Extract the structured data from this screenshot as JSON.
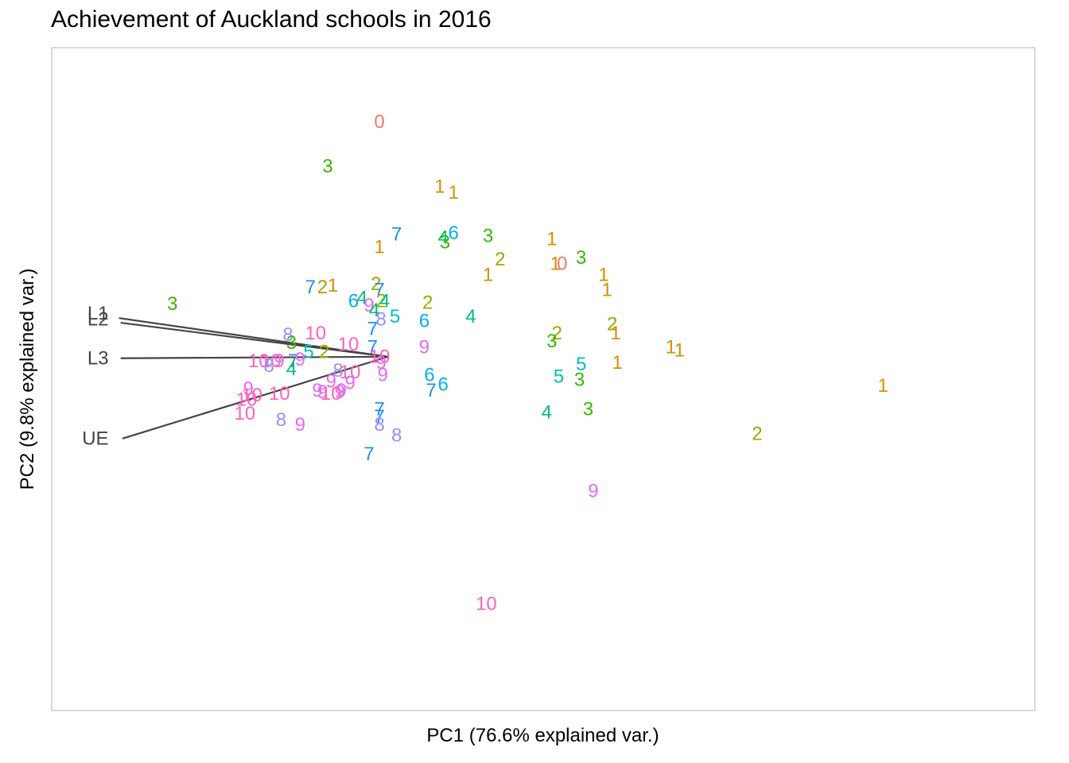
{
  "chart_data": {
    "type": "scatter",
    "title": "Achievement of Auckland schools in 2016",
    "xlabel": "PC1 (76.6% explained var.)",
    "ylabel": "PC2 (9.8% explained var.)",
    "xlim": [
      -1.95,
      3.75
    ],
    "ylim": [
      -2.29,
      2.0
    ],
    "grid": false,
    "legend": "none",
    "decile_colors": {
      "0": "#F8766D",
      "1": "#D89000",
      "2": "#A3A500",
      "3": "#39B600",
      "4": "#00BF7D",
      "5": "#00BFC4",
      "6": "#00B0F6",
      "7": "#1F8EF1",
      "8": "#9590FF",
      "9": "#E76BF3",
      "10": "#FF62BC"
    },
    "points": [
      {
        "x": -0.05,
        "y": 1.52,
        "label": "0"
      },
      {
        "x": -0.35,
        "y": 1.23,
        "label": "3"
      },
      {
        "x": 0.3,
        "y": 1.1,
        "label": "1"
      },
      {
        "x": 0.38,
        "y": 1.06,
        "label": "1"
      },
      {
        "x": 0.05,
        "y": 0.79,
        "label": "7"
      },
      {
        "x": 0.38,
        "y": 0.8,
        "label": "6"
      },
      {
        "x": 0.32,
        "y": 0.77,
        "label": "4"
      },
      {
        "x": 0.33,
        "y": 0.74,
        "label": "3"
      },
      {
        "x": 0.58,
        "y": 0.78,
        "label": "3"
      },
      {
        "x": 0.95,
        "y": 0.76,
        "label": "1"
      },
      {
        "x": -0.05,
        "y": 0.71,
        "label": "1"
      },
      {
        "x": 0.65,
        "y": 0.63,
        "label": "2"
      },
      {
        "x": 0.97,
        "y": 0.6,
        "label": "1"
      },
      {
        "x": 1.01,
        "y": 0.6,
        "label": "0"
      },
      {
        "x": 1.12,
        "y": 0.64,
        "label": "3"
      },
      {
        "x": 0.58,
        "y": 0.53,
        "label": "1"
      },
      {
        "x": 1.25,
        "y": 0.53,
        "label": "1"
      },
      {
        "x": 1.27,
        "y": 0.43,
        "label": "1"
      },
      {
        "x": -0.45,
        "y": 0.45,
        "label": "7"
      },
      {
        "x": -0.38,
        "y": 0.45,
        "label": "2"
      },
      {
        "x": -0.32,
        "y": 0.46,
        "label": "1"
      },
      {
        "x": -0.07,
        "y": 0.47,
        "label": "2"
      },
      {
        "x": -0.05,
        "y": 0.43,
        "label": "7"
      },
      {
        "x": -0.04,
        "y": 0.36,
        "label": "2"
      },
      {
        "x": -0.02,
        "y": 0.36,
        "label": "4"
      },
      {
        "x": -0.2,
        "y": 0.36,
        "label": "6"
      },
      {
        "x": -0.15,
        "y": 0.38,
        "label": "4"
      },
      {
        "x": -0.11,
        "y": 0.33,
        "label": "9"
      },
      {
        "x": -1.25,
        "y": 0.34,
        "label": "3"
      },
      {
        "x": 0.23,
        "y": 0.35,
        "label": "2"
      },
      {
        "x": -0.08,
        "y": 0.3,
        "label": "4"
      },
      {
        "x": -0.04,
        "y": 0.24,
        "label": "8"
      },
      {
        "x": 0.04,
        "y": 0.26,
        "label": "5"
      },
      {
        "x": 0.21,
        "y": 0.23,
        "label": "6"
      },
      {
        "x": 0.48,
        "y": 0.26,
        "label": "4"
      },
      {
        "x": -0.09,
        "y": 0.18,
        "label": "7"
      },
      {
        "x": -0.58,
        "y": 0.14,
        "label": "8"
      },
      {
        "x": -0.42,
        "y": 0.15,
        "label": "10"
      },
      {
        "x": -0.56,
        "y": 0.09,
        "label": "3"
      },
      {
        "x": 1.3,
        "y": 0.21,
        "label": "2"
      },
      {
        "x": 1.32,
        "y": 0.15,
        "label": "1"
      },
      {
        "x": 0.98,
        "y": 0.15,
        "label": "2"
      },
      {
        "x": 0.95,
        "y": 0.1,
        "label": "3"
      },
      {
        "x": -0.09,
        "y": 0.06,
        "label": "7"
      },
      {
        "x": -0.23,
        "y": 0.08,
        "label": "10"
      },
      {
        "x": 0.21,
        "y": 0.06,
        "label": "9"
      },
      {
        "x": -0.46,
        "y": 0.03,
        "label": "5"
      },
      {
        "x": -0.37,
        "y": 0.03,
        "label": "2"
      },
      {
        "x": -0.05,
        "y": 0.0,
        "label": "10"
      },
      {
        "x": -0.04,
        "y": -0.04,
        "label": "9"
      },
      {
        "x": -0.75,
        "y": -0.03,
        "label": "10"
      },
      {
        "x": -0.68,
        "y": -0.03,
        "label": "10"
      },
      {
        "x": -0.63,
        "y": -0.03,
        "label": "9"
      },
      {
        "x": -0.55,
        "y": -0.03,
        "label": "7"
      },
      {
        "x": -0.51,
        "y": -0.02,
        "label": "9"
      },
      {
        "x": -0.69,
        "y": -0.06,
        "label": "8"
      },
      {
        "x": -0.56,
        "y": -0.08,
        "label": "4"
      },
      {
        "x": 1.64,
        "y": 0.06,
        "label": "1"
      },
      {
        "x": 1.69,
        "y": 0.04,
        "label": "1"
      },
      {
        "x": 1.33,
        "y": -0.04,
        "label": "1"
      },
      {
        "x": 1.12,
        "y": -0.05,
        "label": "5"
      },
      {
        "x": -0.29,
        "y": -0.09,
        "label": "8"
      },
      {
        "x": -0.22,
        "y": -0.1,
        "label": "10"
      },
      {
        "x": -0.03,
        "y": -0.12,
        "label": "9"
      },
      {
        "x": 0.24,
        "y": -0.12,
        "label": "6"
      },
      {
        "x": 0.32,
        "y": -0.18,
        "label": "6"
      },
      {
        "x": 0.25,
        "y": -0.22,
        "label": "7"
      },
      {
        "x": 0.99,
        "y": -0.13,
        "label": "5"
      },
      {
        "x": 1.11,
        "y": -0.15,
        "label": "3"
      },
      {
        "x": 2.87,
        "y": -0.19,
        "label": "1"
      },
      {
        "x": -0.33,
        "y": -0.16,
        "label": "9"
      },
      {
        "x": -0.22,
        "y": -0.17,
        "label": "9"
      },
      {
        "x": -0.27,
        "y": -0.22,
        "label": "9"
      },
      {
        "x": -0.38,
        "y": -0.23,
        "label": "9"
      },
      {
        "x": -0.41,
        "y": -0.22,
        "label": "9"
      },
      {
        "x": -0.33,
        "y": -0.24,
        "label": "10"
      },
      {
        "x": -0.28,
        "y": -0.23,
        "label": "9"
      },
      {
        "x": -0.63,
        "y": -0.24,
        "label": "10"
      },
      {
        "x": -0.81,
        "y": -0.21,
        "label": "9"
      },
      {
        "x": -0.82,
        "y": -0.28,
        "label": "10"
      },
      {
        "x": -0.79,
        "y": -0.25,
        "label": "10"
      },
      {
        "x": -0.83,
        "y": -0.37,
        "label": "10"
      },
      {
        "x": 0.92,
        "y": -0.36,
        "label": "4"
      },
      {
        "x": 1.16,
        "y": -0.34,
        "label": "3"
      },
      {
        "x": -0.05,
        "y": -0.34,
        "label": "7"
      },
      {
        "x": -0.05,
        "y": -0.39,
        "label": "7"
      },
      {
        "x": -0.62,
        "y": -0.41,
        "label": "8"
      },
      {
        "x": -0.51,
        "y": -0.44,
        "label": "9"
      },
      {
        "x": -0.05,
        "y": -0.44,
        "label": "8"
      },
      {
        "x": 0.05,
        "y": -0.51,
        "label": "8"
      },
      {
        "x": 2.14,
        "y": -0.5,
        "label": "2"
      },
      {
        "x": -0.11,
        "y": -0.63,
        "label": "7"
      },
      {
        "x": 1.19,
        "y": -0.87,
        "label": "9"
      },
      {
        "x": 0.57,
        "y": -1.6,
        "label": "10"
      }
    ],
    "loadings": [
      {
        "name": "L1",
        "x": -1.56,
        "y": 0.25,
        "label_x": -1.62,
        "label_y": 0.28
      },
      {
        "name": "L2",
        "x": -1.55,
        "y": 0.22,
        "label_x": -1.62,
        "label_y": 0.24
      },
      {
        "name": "L3",
        "x": -1.55,
        "y": -0.01,
        "label_x": -1.62,
        "label_y": -0.01
      },
      {
        "name": "UE",
        "x": -1.54,
        "y": -0.53,
        "label_x": -1.62,
        "label_y": -0.53
      }
    ],
    "loading_color": "#444444",
    "panel_border_color": "#B3B3B3"
  }
}
